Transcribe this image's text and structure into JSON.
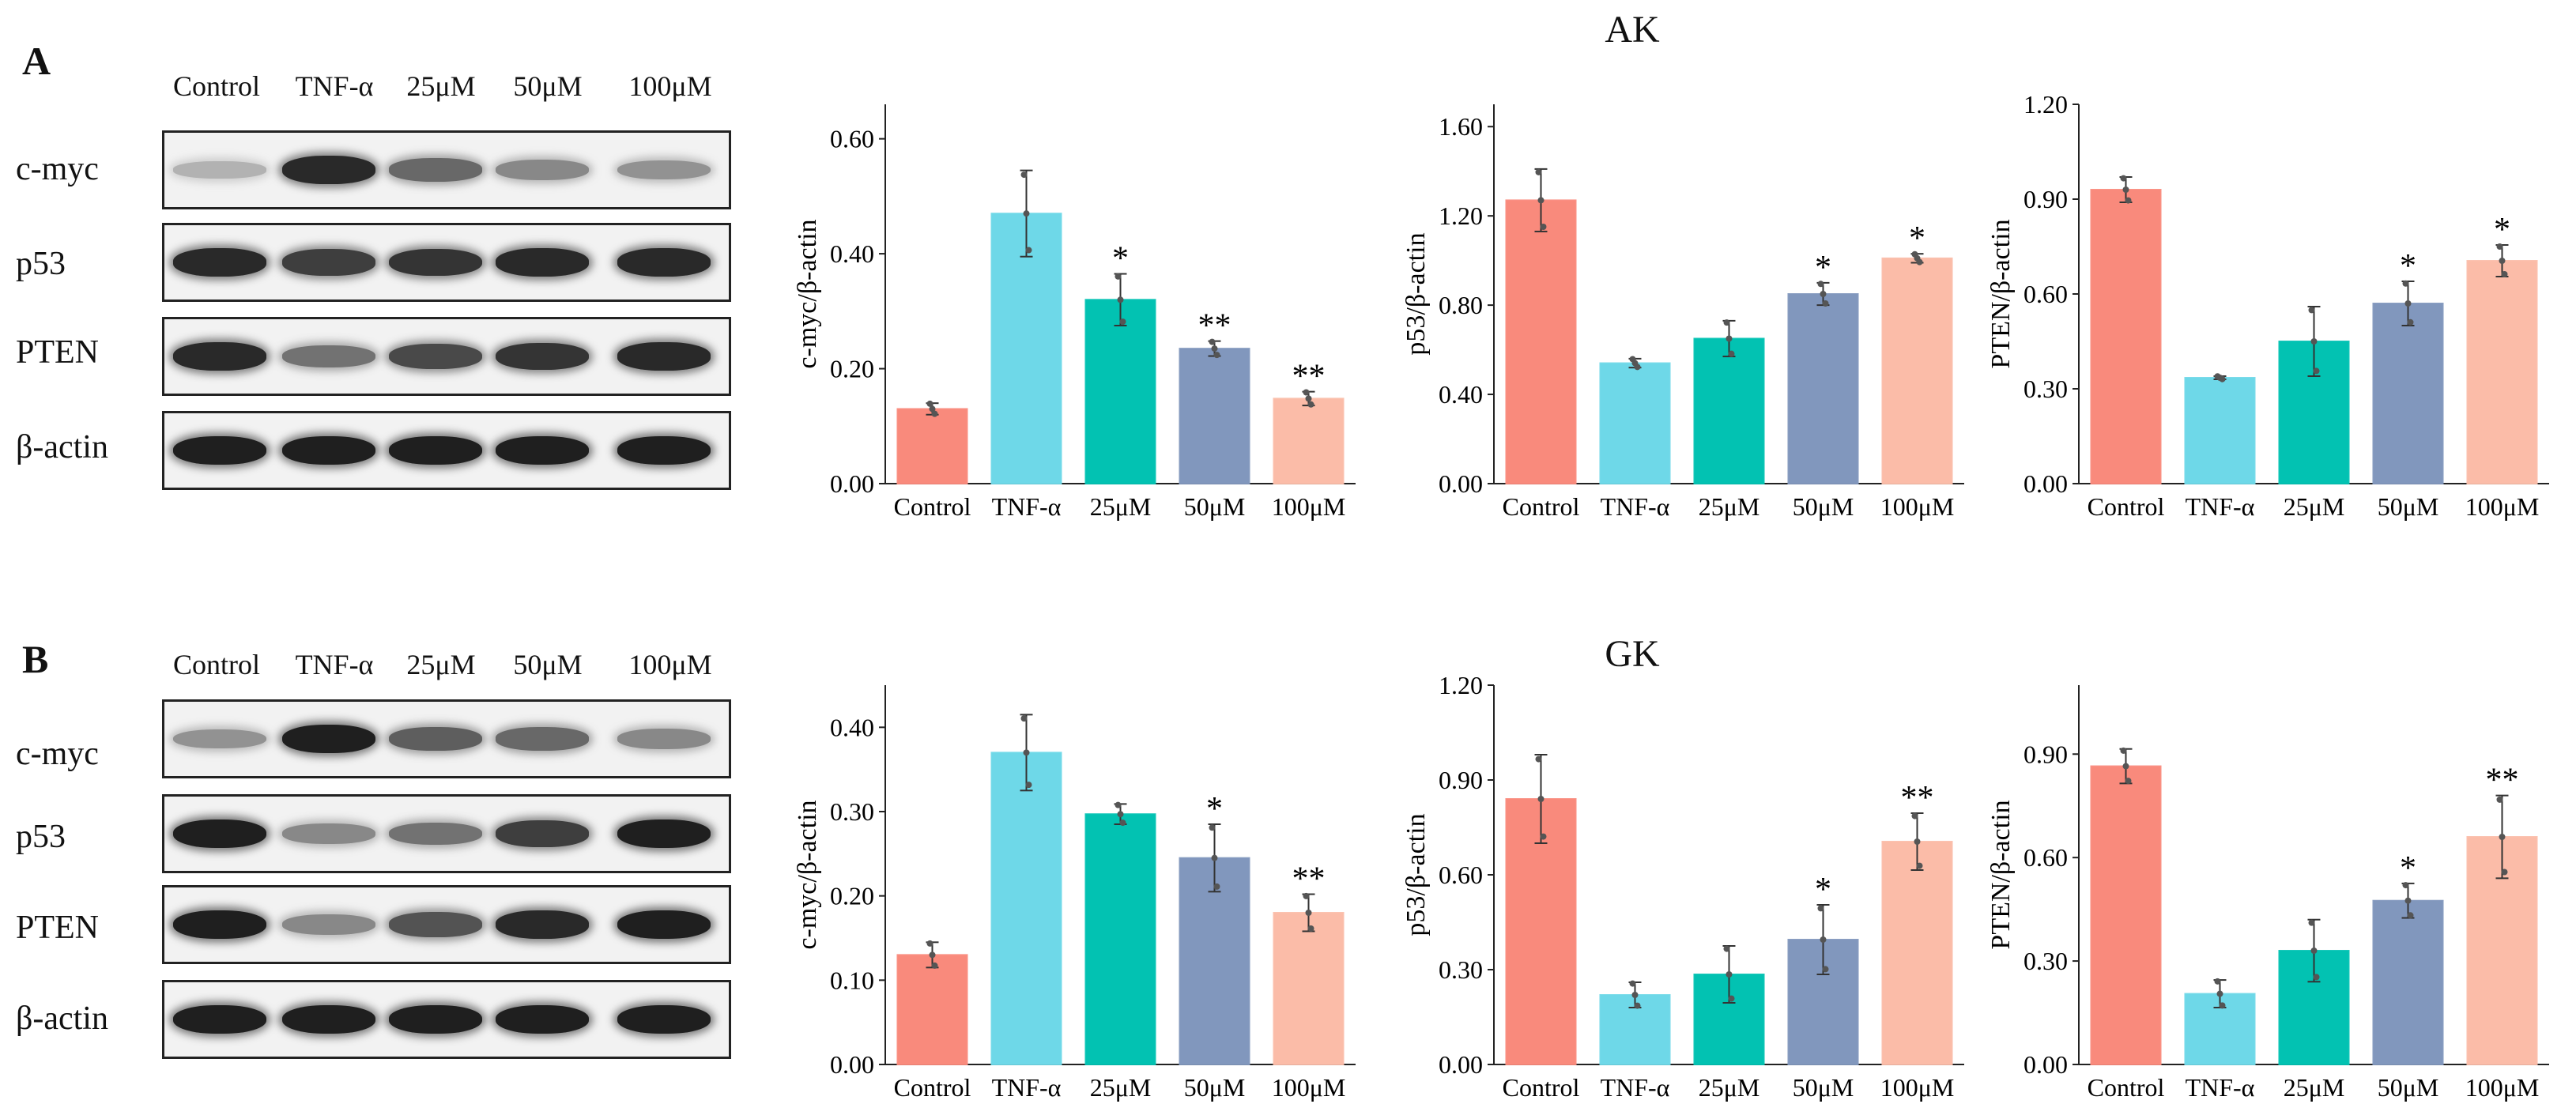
{
  "panels": [
    {
      "letter": "A",
      "title": "AK",
      "lanes": [
        "Control",
        "TNF-α",
        "25μM",
        "50μM",
        "100μM"
      ],
      "proteins": [
        "c-myc",
        "p53",
        "PTEN",
        "β-actin"
      ],
      "band_intensity": [
        [
          0.25,
          0.9,
          0.6,
          0.45,
          0.4
        ],
        [
          0.9,
          0.8,
          0.85,
          0.9,
          0.9
        ],
        [
          0.9,
          0.55,
          0.75,
          0.85,
          0.9
        ],
        [
          0.95,
          0.95,
          0.95,
          0.95,
          0.95
        ]
      ]
    },
    {
      "letter": "B",
      "title": "GK",
      "lanes": [
        "Control",
        "TNF-α",
        "25μM",
        "50μM",
        "100μM"
      ],
      "proteins": [
        "c-myc",
        "p53",
        "PTEN",
        "β-actin"
      ],
      "band_intensity": [
        [
          0.4,
          0.95,
          0.65,
          0.6,
          0.45
        ],
        [
          0.95,
          0.45,
          0.55,
          0.8,
          0.95
        ],
        [
          0.95,
          0.45,
          0.7,
          0.9,
          0.95
        ],
        [
          0.95,
          0.95,
          0.95,
          0.95,
          0.95
        ]
      ]
    }
  ],
  "colors": {
    "Control": "#f98a7c",
    "TNF-α": "#6ed8e8",
    "25μM": "#02c2b2",
    "50μM": "#8197bd",
    "100μM": "#fbbca8"
  },
  "chart_data": [
    {
      "id": "A-cmyc",
      "type": "bar",
      "panel": "A",
      "categories": [
        "Control",
        "TNF-α",
        "25μM",
        "50μM",
        "100μM"
      ],
      "values": [
        0.13,
        0.47,
        0.32,
        0.235,
        0.148
      ],
      "errors": [
        0.01,
        0.075,
        0.045,
        0.013,
        0.012
      ],
      "significance": [
        "",
        "",
        "*",
        "**",
        "**"
      ],
      "ylabel": "c-myc/β-actin",
      "ylim": [
        0,
        0.66
      ],
      "yticks": [
        0,
        0.2,
        0.4,
        0.6
      ],
      "ytick_labels": [
        "0.00",
        "0.20",
        "0.40",
        "0.60"
      ]
    },
    {
      "id": "A-p53",
      "type": "bar",
      "panel": "A",
      "categories": [
        "Control",
        "TNF-α",
        "25μM",
        "50μM",
        "100μM"
      ],
      "values": [
        1.27,
        0.54,
        0.65,
        0.85,
        1.01
      ],
      "errors": [
        0.14,
        0.02,
        0.08,
        0.05,
        0.02
      ],
      "significance": [
        "",
        "",
        "",
        "*",
        "*"
      ],
      "ylabel": "p53/β-actin",
      "ylim": [
        0,
        1.7
      ],
      "yticks": [
        0,
        0.4,
        0.8,
        1.2,
        1.6
      ],
      "ytick_labels": [
        "0.00",
        "0.40",
        "0.80",
        "1.20",
        "1.60"
      ]
    },
    {
      "id": "A-pten",
      "type": "bar",
      "panel": "A",
      "categories": [
        "Control",
        "TNF-α",
        "25μM",
        "50μM",
        "100μM"
      ],
      "values": [
        0.93,
        0.335,
        0.45,
        0.57,
        0.705
      ],
      "errors": [
        0.04,
        0.005,
        0.11,
        0.07,
        0.05
      ],
      "significance": [
        "",
        "",
        "",
        "*",
        "*"
      ],
      "ylabel": "PTEN/β-actin",
      "ylim": [
        0,
        1.2
      ],
      "yticks": [
        0,
        0.3,
        0.6,
        0.9,
        1.2
      ],
      "ytick_labels": [
        "0.00",
        "0.30",
        "0.60",
        "0.90",
        "1.20"
      ]
    },
    {
      "id": "B-cmyc",
      "type": "bar",
      "panel": "B",
      "categories": [
        "Control",
        "TNF-α",
        "25μM",
        "50μM",
        "100μM"
      ],
      "values": [
        0.13,
        0.37,
        0.297,
        0.245,
        0.18
      ],
      "errors": [
        0.015,
        0.045,
        0.012,
        0.04,
        0.022
      ],
      "significance": [
        "",
        "",
        "",
        "*",
        "**"
      ],
      "ylabel": "c-myc/β-actin",
      "ylim": [
        0,
        0.45
      ],
      "yticks": [
        0,
        0.1,
        0.2,
        0.3,
        0.4
      ],
      "ytick_labels": [
        "0.00",
        "0.10",
        "0.20",
        "0.30",
        "0.40"
      ]
    },
    {
      "id": "B-p53",
      "type": "bar",
      "panel": "B",
      "categories": [
        "Control",
        "TNF-α",
        "25μM",
        "50μM",
        "100μM"
      ],
      "values": [
        0.84,
        0.22,
        0.285,
        0.395,
        0.705
      ],
      "errors": [
        0.14,
        0.04,
        0.09,
        0.11,
        0.09
      ],
      "significance": [
        "",
        "",
        "",
        "*",
        "**"
      ],
      "ylabel": "p53/β-actin",
      "ylim": [
        0,
        1.2
      ],
      "yticks": [
        0,
        0.3,
        0.6,
        0.9,
        1.2
      ],
      "ytick_labels": [
        "0.00",
        "0.30",
        "0.60",
        "0.90",
        "1.20"
      ]
    },
    {
      "id": "B-pten",
      "type": "bar",
      "panel": "B",
      "categories": [
        "Control",
        "TNF-α",
        "25μM",
        "50μM",
        "100μM"
      ],
      "values": [
        0.865,
        0.205,
        0.33,
        0.475,
        0.66
      ],
      "errors": [
        0.05,
        0.04,
        0.09,
        0.05,
        0.12
      ],
      "significance": [
        "",
        "",
        "",
        "*",
        "**"
      ],
      "ylabel": "PTEN/β-actin",
      "ylim": [
        0,
        1.1
      ],
      "yticks": [
        0,
        0.3,
        0.6,
        0.9
      ],
      "ytick_labels": [
        "0.00",
        "0.30",
        "0.60",
        "0.90"
      ]
    }
  ]
}
